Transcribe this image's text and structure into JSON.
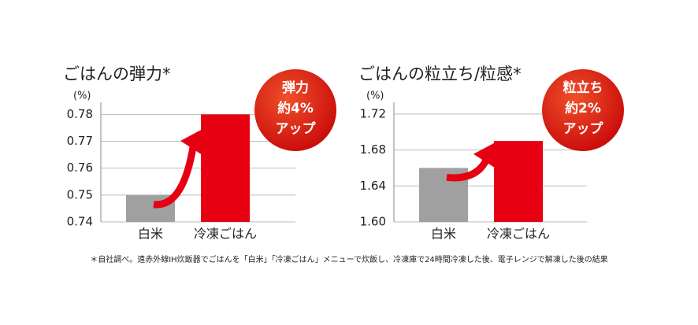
{
  "chart_data": [
    {
      "type": "bar",
      "title": "ごはんの弾力*",
      "y_label": "(%)",
      "categories": [
        "白米",
        "冷凍ごはん"
      ],
      "values": [
        0.75,
        0.78
      ],
      "colors": [
        "#a0a0a0",
        "#e60012"
      ],
      "ylim": [
        0.74,
        0.7845
      ],
      "yticks": [
        0.74,
        0.75,
        0.76,
        0.77,
        0.78
      ],
      "grid": true,
      "badge": [
        "弾力",
        "約4%",
        "アップ"
      ]
    },
    {
      "type": "bar",
      "title": "ごはんの粒立ち/粒感*",
      "y_label": "(%)",
      "categories": [
        "白米",
        "冷凍ごはん"
      ],
      "values": [
        1.66,
        1.69
      ],
      "colors": [
        "#a0a0a0",
        "#e60012"
      ],
      "ylim": [
        1.6,
        1.733
      ],
      "yticks": [
        {
          "value": 1.6,
          "label": "1.60"
        },
        1.64,
        1.68,
        1.72
      ],
      "grid": true,
      "badge": [
        "粒立ち",
        "約2%",
        "アップ"
      ]
    }
  ],
  "footnote": "＊自社調べ。遠赤外線IH炊飯器でごはんを「白米」「冷凍ごはん」メニューで炊飯し、冷凍庫で24時間冷凍した後、電子レンジで解凍した後の結果"
}
